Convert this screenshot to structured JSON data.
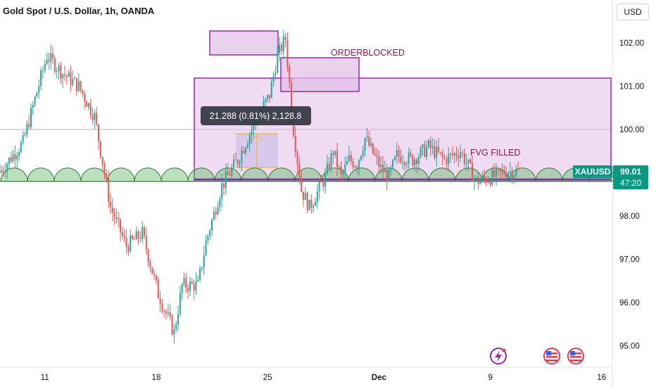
{
  "header": {
    "title": "Gold Spot / U.S. Dollar, 1h, OANDA",
    "currency_label": "USD"
  },
  "chart_data": {
    "type": "candlestick",
    "title": "Gold Spot / U.S. Dollar, 1h, OANDA",
    "symbol": "XAUUSD",
    "ylim": [
      94.6,
      102.8
    ],
    "y_ticks": [
      "102.00",
      "101.00",
      "100.00",
      "99.00",
      "98.00",
      "97.00",
      "96.00",
      "95.00"
    ],
    "y_tick_values": [
      102,
      101,
      100,
      99,
      98,
      97,
      96,
      95
    ],
    "x_ticks": [
      "11",
      "18",
      "25",
      "Dec",
      "9",
      "16"
    ],
    "price_line": 100.0,
    "last_price": {
      "symbol": "XAUUSD",
      "price": "99.01",
      "countdown": "47:20",
      "value": 99.01
    },
    "measure_label": "21.288 (0.81%) 2,128.8",
    "annotations": [
      "ORDERBLOCKED",
      "FVG FILLED"
    ],
    "colors": {
      "up": "#26a69a",
      "down": "#ef5350",
      "zone_fill": "#e1bee7",
      "zone_border": "#9c27b0",
      "tag": "#089981",
      "arc": "#66bb6a"
    },
    "path": [
      [
        0,
        99.0
      ],
      [
        3,
        99.7
      ],
      [
        6,
        101.7
      ],
      [
        8,
        101.3
      ],
      [
        10,
        101.0
      ],
      [
        12,
        100.3
      ],
      [
        14,
        98.2
      ],
      [
        16,
        97.3
      ],
      [
        18,
        97.6
      ],
      [
        20,
        96.2
      ],
      [
        22,
        95.3
      ],
      [
        23,
        96.4
      ],
      [
        25,
        96.4
      ],
      [
        26,
        97.4
      ],
      [
        28,
        98.7
      ],
      [
        30,
        99.3
      ],
      [
        32,
        100.1
      ],
      [
        34,
        100.8
      ],
      [
        35,
        101.7
      ],
      [
        36,
        102.1
      ],
      [
        37,
        100.0
      ],
      [
        38,
        98.6
      ],
      [
        39,
        98.2
      ],
      [
        41,
        98.9
      ],
      [
        42,
        99.5
      ],
      [
        43,
        98.9
      ],
      [
        44,
        99.3
      ],
      [
        45,
        99.2
      ],
      [
        46,
        99.8
      ],
      [
        48,
        99.1
      ],
      [
        49,
        98.9
      ],
      [
        50,
        99.4
      ],
      [
        52,
        99.3
      ],
      [
        54,
        99.6
      ],
      [
        56,
        99.3
      ],
      [
        58,
        99.5
      ],
      [
        60,
        98.8
      ],
      [
        62,
        98.9
      ],
      [
        64,
        99.05
      ],
      [
        65,
        99.01
      ]
    ],
    "sessions": [
      {
        "label": "11",
        "x": 5.5
      },
      {
        "label": "18",
        "x": 19.5
      },
      {
        "label": "25",
        "x": 33.5
      },
      {
        "label": "Dec",
        "x": 47.5
      },
      {
        "label": "9",
        "x": 61.5
      },
      {
        "label": "16",
        "x": 75.5
      }
    ]
  }
}
